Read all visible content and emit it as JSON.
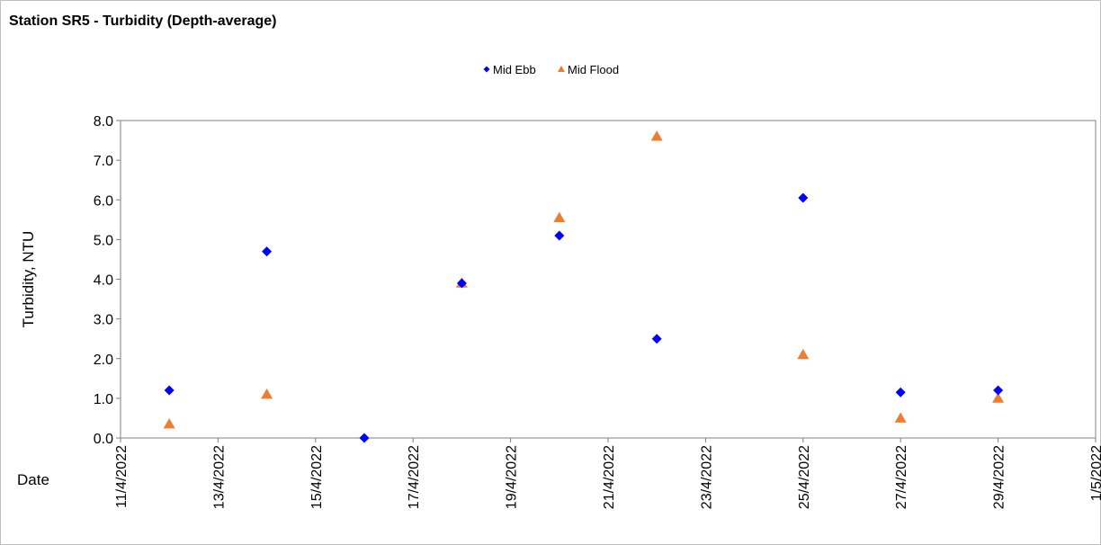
{
  "chart_data": {
    "type": "scatter",
    "title": "Station SR5 - Turbidity (Depth-average)",
    "xlabel": "Date",
    "ylabel": "Turbidity, NTU",
    "xlim": [
      "11/4/2022",
      "1/5/2022"
    ],
    "ylim": [
      0,
      8
    ],
    "x_ticks": [
      "11/4/2022",
      "13/4/2022",
      "15/4/2022",
      "17/4/2022",
      "19/4/2022",
      "21/4/2022",
      "23/4/2022",
      "25/4/2022",
      "27/4/2022",
      "29/4/2022",
      "1/5/2022"
    ],
    "y_ticks": [
      "0.0",
      "1.0",
      "2.0",
      "3.0",
      "4.0",
      "5.0",
      "6.0",
      "7.0",
      "8.0"
    ],
    "grid": false,
    "legend_position": "top-center",
    "series": [
      {
        "name": "Mid Ebb",
        "marker": "diamond",
        "color": "#0000ff",
        "points": [
          {
            "x": "12/4/2022",
            "y": 1.2
          },
          {
            "x": "14/4/2022",
            "y": 4.7
          },
          {
            "x": "16/4/2022",
            "y": 0.0
          },
          {
            "x": "18/4/2022",
            "y": 3.9
          },
          {
            "x": "20/4/2022",
            "y": 5.1
          },
          {
            "x": "22/4/2022",
            "y": 2.5
          },
          {
            "x": "25/4/2022",
            "y": 6.05
          },
          {
            "x": "27/4/2022",
            "y": 1.15
          },
          {
            "x": "29/4/2022",
            "y": 1.2
          }
        ]
      },
      {
        "name": "Mid Flood",
        "marker": "triangle",
        "color": "#ed7d31",
        "points": [
          {
            "x": "12/4/2022",
            "y": 0.35
          },
          {
            "x": "14/4/2022",
            "y": 1.1
          },
          {
            "x": "18/4/2022",
            "y": 3.9
          },
          {
            "x": "20/4/2022",
            "y": 5.55
          },
          {
            "x": "22/4/2022",
            "y": 7.6
          },
          {
            "x": "25/4/2022",
            "y": 2.1
          },
          {
            "x": "27/4/2022",
            "y": 0.5
          },
          {
            "x": "29/4/2022",
            "y": 1.0
          }
        ]
      }
    ]
  }
}
